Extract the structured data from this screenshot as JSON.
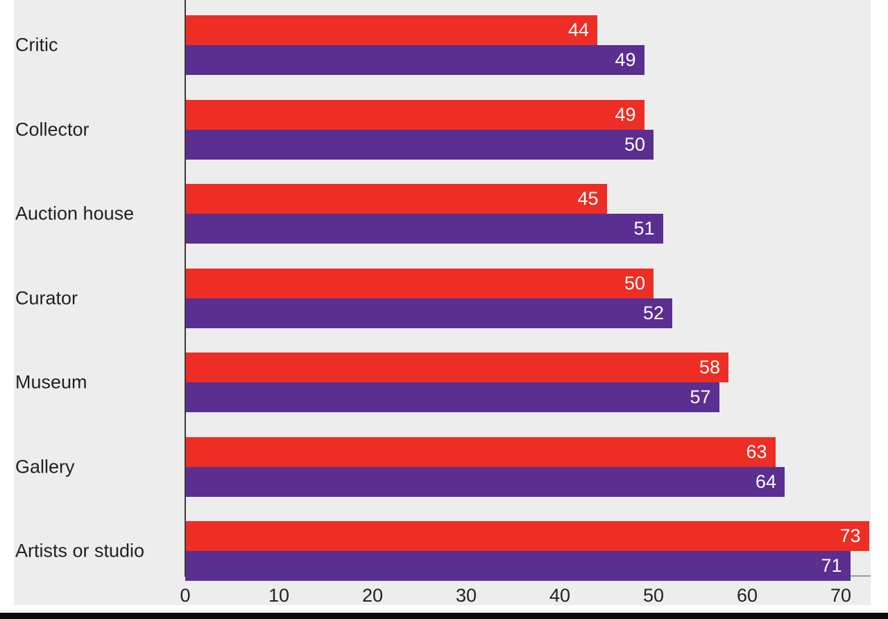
{
  "chart_data": {
    "type": "bar",
    "orientation": "horizontal",
    "title": "",
    "xlabel": "",
    "ylabel": "",
    "categories": [
      "Critic",
      "Collector",
      "Auction house",
      "Curator",
      "Museum",
      "Gallery",
      "Artists or studio"
    ],
    "series": [
      {
        "name": "red-series",
        "color": "#ee2d24",
        "values": [
          44,
          49,
          45,
          50,
          58,
          63,
          73
        ]
      },
      {
        "name": "purple-series",
        "color": "#5b2e91",
        "values": [
          49,
          50,
          51,
          52,
          57,
          64,
          71
        ]
      }
    ],
    "value_labels_shown": true,
    "value_label_color": "#ffffff",
    "x_ticks": [
      0,
      10,
      20,
      30,
      40,
      50,
      60,
      70
    ],
    "xlim": [
      0,
      73.2
    ],
    "grid": false,
    "legend": "none",
    "panel_background": "#ededed",
    "text_color": "#231f20",
    "axis_line_color": "#3a3a3a",
    "baseline_color": "#9a9a9a",
    "bottom_bar_color": "#0b0b0b"
  }
}
